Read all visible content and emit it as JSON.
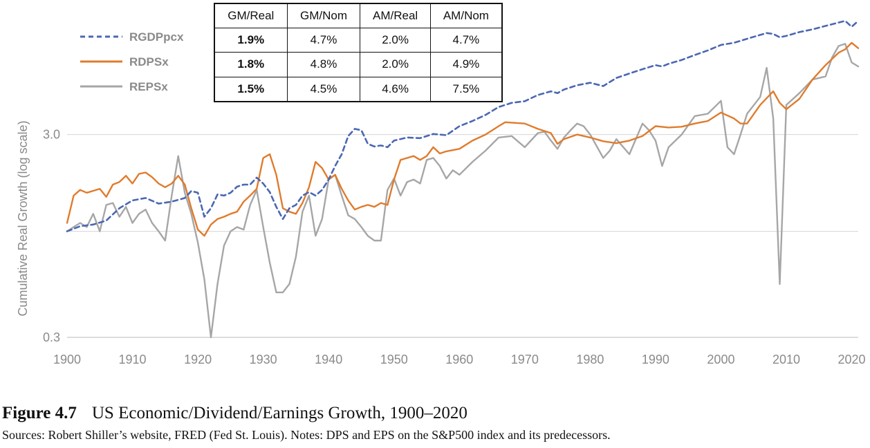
{
  "chart_data": {
    "type": "line",
    "ylabel": "Cumulative Real Growth (log scale)",
    "xlabel": "",
    "xlim": [
      1900,
      2021
    ],
    "ylim": [
      0.3,
      12
    ],
    "y_scale": "log",
    "y_ticks": [
      {
        "value": 3.0,
        "label": "3.0"
      },
      {
        "value": 1.0,
        "label": ""
      },
      {
        "value": 0.3,
        "label": "0.3"
      }
    ],
    "x_ticks": [
      1900,
      1910,
      1920,
      1930,
      1940,
      1950,
      1960,
      1970,
      1980,
      1990,
      2000,
      2010,
      2020
    ],
    "gridlines": "horizontal",
    "legend_position": "top-left",
    "series": [
      {
        "name": "RGDPpcx",
        "color": "#4a67b3",
        "style": "dashed",
        "points": [
          [
            1900,
            1.0
          ],
          [
            1902,
            1.06
          ],
          [
            1904,
            1.08
          ],
          [
            1906,
            1.13
          ],
          [
            1908,
            1.3
          ],
          [
            1910,
            1.42
          ],
          [
            1912,
            1.46
          ],
          [
            1914,
            1.37
          ],
          [
            1916,
            1.4
          ],
          [
            1918,
            1.46
          ],
          [
            1919,
            1.58
          ],
          [
            1920,
            1.55
          ],
          [
            1921,
            1.18
          ],
          [
            1922,
            1.3
          ],
          [
            1923,
            1.52
          ],
          [
            1924,
            1.5
          ],
          [
            1925,
            1.55
          ],
          [
            1926,
            1.66
          ],
          [
            1927,
            1.7
          ],
          [
            1928,
            1.7
          ],
          [
            1929,
            1.84
          ],
          [
            1930,
            1.72
          ],
          [
            1931,
            1.56
          ],
          [
            1932,
            1.32
          ],
          [
            1933,
            1.15
          ],
          [
            1934,
            1.3
          ],
          [
            1935,
            1.35
          ],
          [
            1936,
            1.5
          ],
          [
            1937,
            1.56
          ],
          [
            1938,
            1.5
          ],
          [
            1939,
            1.6
          ],
          [
            1940,
            1.8
          ],
          [
            1941,
            2.1
          ],
          [
            1942,
            2.4
          ],
          [
            1943,
            2.95
          ],
          [
            1944,
            3.2
          ],
          [
            1945,
            3.15
          ],
          [
            1946,
            2.7
          ],
          [
            1947,
            2.62
          ],
          [
            1948,
            2.65
          ],
          [
            1949,
            2.6
          ],
          [
            1950,
            2.8
          ],
          [
            1952,
            2.9
          ],
          [
            1954,
            2.88
          ],
          [
            1956,
            3.02
          ],
          [
            1958,
            2.98
          ],
          [
            1960,
            3.3
          ],
          [
            1962,
            3.5
          ],
          [
            1964,
            3.75
          ],
          [
            1966,
            4.1
          ],
          [
            1968,
            4.3
          ],
          [
            1970,
            4.38
          ],
          [
            1972,
            4.7
          ],
          [
            1974,
            4.9
          ],
          [
            1975,
            4.8
          ],
          [
            1976,
            5.0
          ],
          [
            1978,
            5.25
          ],
          [
            1980,
            5.4
          ],
          [
            1982,
            5.2
          ],
          [
            1984,
            5.7
          ],
          [
            1986,
            6.0
          ],
          [
            1988,
            6.3
          ],
          [
            1990,
            6.6
          ],
          [
            1991,
            6.5
          ],
          [
            1992,
            6.7
          ],
          [
            1994,
            7.0
          ],
          [
            1996,
            7.4
          ],
          [
            1998,
            7.8
          ],
          [
            2000,
            8.3
          ],
          [
            2002,
            8.5
          ],
          [
            2004,
            8.9
          ],
          [
            2006,
            9.3
          ],
          [
            2007,
            9.5
          ],
          [
            2008,
            9.4
          ],
          [
            2009,
            9.05
          ],
          [
            2010,
            9.2
          ],
          [
            2012,
            9.6
          ],
          [
            2014,
            9.9
          ],
          [
            2016,
            10.3
          ],
          [
            2018,
            10.7
          ],
          [
            2019,
            10.9
          ],
          [
            2020,
            10.2
          ],
          [
            2021,
            10.9
          ]
        ]
      },
      {
        "name": "RDPSx",
        "color": "#e07b2c",
        "style": "solid",
        "points": [
          [
            1900,
            1.1
          ],
          [
            1901,
            1.5
          ],
          [
            1902,
            1.6
          ],
          [
            1903,
            1.55
          ],
          [
            1905,
            1.62
          ],
          [
            1906,
            1.48
          ],
          [
            1907,
            1.7
          ],
          [
            1908,
            1.75
          ],
          [
            1909,
            1.88
          ],
          [
            1910,
            1.72
          ],
          [
            1911,
            1.92
          ],
          [
            1912,
            1.95
          ],
          [
            1913,
            1.85
          ],
          [
            1914,
            1.72
          ],
          [
            1915,
            1.65
          ],
          [
            1916,
            1.72
          ],
          [
            1917,
            1.88
          ],
          [
            1918,
            1.7
          ],
          [
            1919,
            1.3
          ],
          [
            1920,
            1.02
          ],
          [
            1921,
            0.95
          ],
          [
            1922,
            1.08
          ],
          [
            1923,
            1.15
          ],
          [
            1924,
            1.18
          ],
          [
            1925,
            1.22
          ],
          [
            1926,
            1.25
          ],
          [
            1927,
            1.4
          ],
          [
            1928,
            1.5
          ],
          [
            1929,
            1.62
          ],
          [
            1930,
            2.3
          ],
          [
            1931,
            2.4
          ],
          [
            1932,
            1.9
          ],
          [
            1933,
            1.3
          ],
          [
            1934,
            1.25
          ],
          [
            1935,
            1.22
          ],
          [
            1936,
            1.38
          ],
          [
            1937,
            1.65
          ],
          [
            1938,
            2.2
          ],
          [
            1939,
            2.05
          ],
          [
            1940,
            1.8
          ],
          [
            1941,
            1.9
          ],
          [
            1942,
            1.62
          ],
          [
            1943,
            1.42
          ],
          [
            1944,
            1.28
          ],
          [
            1945,
            1.32
          ],
          [
            1946,
            1.35
          ],
          [
            1947,
            1.32
          ],
          [
            1948,
            1.38
          ],
          [
            1949,
            1.35
          ],
          [
            1950,
            1.8
          ],
          [
            1951,
            2.25
          ],
          [
            1952,
            2.3
          ],
          [
            1953,
            2.35
          ],
          [
            1954,
            2.25
          ],
          [
            1955,
            2.35
          ],
          [
            1956,
            2.6
          ],
          [
            1957,
            2.42
          ],
          [
            1958,
            2.48
          ],
          [
            1960,
            2.55
          ],
          [
            1962,
            2.8
          ],
          [
            1964,
            3.0
          ],
          [
            1966,
            3.3
          ],
          [
            1967,
            3.45
          ],
          [
            1970,
            3.4
          ],
          [
            1972,
            3.2
          ],
          [
            1974,
            3.05
          ],
          [
            1975,
            2.7
          ],
          [
            1976,
            2.85
          ],
          [
            1978,
            3.0
          ],
          [
            1980,
            2.9
          ],
          [
            1982,
            2.78
          ],
          [
            1984,
            2.72
          ],
          [
            1986,
            2.8
          ],
          [
            1988,
            2.95
          ],
          [
            1990,
            3.3
          ],
          [
            1992,
            3.25
          ],
          [
            1994,
            3.28
          ],
          [
            1996,
            3.4
          ],
          [
            1998,
            3.5
          ],
          [
            2000,
            3.85
          ],
          [
            2002,
            3.6
          ],
          [
            2003,
            3.4
          ],
          [
            2004,
            3.4
          ],
          [
            2006,
            4.2
          ],
          [
            2008,
            4.9
          ],
          [
            2009,
            4.3
          ],
          [
            2010,
            4.0
          ],
          [
            2012,
            4.5
          ],
          [
            2014,
            5.6
          ],
          [
            2016,
            6.6
          ],
          [
            2018,
            7.6
          ],
          [
            2019,
            7.9
          ],
          [
            2020,
            8.5
          ],
          [
            2021,
            8.0
          ]
        ]
      },
      {
        "name": "REPSx",
        "color": "#a6a6a6",
        "style": "solid",
        "points": [
          [
            1900,
            1.0
          ],
          [
            1901,
            1.05
          ],
          [
            1902,
            1.1
          ],
          [
            1903,
            1.05
          ],
          [
            1904,
            1.22
          ],
          [
            1905,
            1.0
          ],
          [
            1906,
            1.35
          ],
          [
            1907,
            1.38
          ],
          [
            1908,
            1.18
          ],
          [
            1909,
            1.32
          ],
          [
            1910,
            1.1
          ],
          [
            1911,
            1.22
          ],
          [
            1912,
            1.28
          ],
          [
            1913,
            1.1
          ],
          [
            1914,
            1.0
          ],
          [
            1915,
            0.9
          ],
          [
            1916,
            1.5
          ],
          [
            1917,
            2.35
          ],
          [
            1918,
            1.55
          ],
          [
            1919,
            1.22
          ],
          [
            1920,
            0.88
          ],
          [
            1921,
            0.58
          ],
          [
            1922,
            0.3
          ],
          [
            1923,
            0.55
          ],
          [
            1924,
            0.85
          ],
          [
            1925,
            1.0
          ],
          [
            1926,
            1.05
          ],
          [
            1927,
            1.02
          ],
          [
            1928,
            1.35
          ],
          [
            1929,
            1.6
          ],
          [
            1930,
            1.05
          ],
          [
            1931,
            0.7
          ],
          [
            1932,
            0.5
          ],
          [
            1933,
            0.5
          ],
          [
            1934,
            0.55
          ],
          [
            1935,
            0.75
          ],
          [
            1936,
            1.25
          ],
          [
            1937,
            1.5
          ],
          [
            1938,
            0.95
          ],
          [
            1939,
            1.15
          ],
          [
            1940,
            1.8
          ],
          [
            1941,
            1.9
          ],
          [
            1942,
            1.5
          ],
          [
            1943,
            1.2
          ],
          [
            1944,
            1.15
          ],
          [
            1945,
            1.05
          ],
          [
            1946,
            0.95
          ],
          [
            1947,
            0.9
          ],
          [
            1948,
            0.9
          ],
          [
            1949,
            1.6
          ],
          [
            1950,
            1.82
          ],
          [
            1951,
            1.5
          ],
          [
            1952,
            1.75
          ],
          [
            1953,
            1.8
          ],
          [
            1954,
            1.72
          ],
          [
            1955,
            2.25
          ],
          [
            1956,
            2.3
          ],
          [
            1957,
            2.1
          ],
          [
            1958,
            1.82
          ],
          [
            1959,
            2.0
          ],
          [
            1960,
            1.9
          ],
          [
            1962,
            2.2
          ],
          [
            1964,
            2.5
          ],
          [
            1966,
            2.9
          ],
          [
            1968,
            2.95
          ],
          [
            1970,
            2.6
          ],
          [
            1972,
            3.05
          ],
          [
            1973,
            3.1
          ],
          [
            1974,
            2.8
          ],
          [
            1975,
            2.55
          ],
          [
            1976,
            2.9
          ],
          [
            1977,
            3.15
          ],
          [
            1978,
            3.4
          ],
          [
            1979,
            3.3
          ],
          [
            1980,
            3.0
          ],
          [
            1982,
            2.3
          ],
          [
            1983,
            2.5
          ],
          [
            1984,
            2.85
          ],
          [
            1986,
            2.4
          ],
          [
            1988,
            3.4
          ],
          [
            1989,
            3.15
          ],
          [
            1990,
            2.8
          ],
          [
            1991,
            2.1
          ],
          [
            1992,
            2.6
          ],
          [
            1994,
            3.0
          ],
          [
            1996,
            3.7
          ],
          [
            1998,
            3.8
          ],
          [
            2000,
            4.4
          ],
          [
            2001,
            2.6
          ],
          [
            2002,
            2.4
          ],
          [
            2003,
            3.0
          ],
          [
            2004,
            3.8
          ],
          [
            2006,
            4.6
          ],
          [
            2007,
            6.4
          ],
          [
            2008,
            3.6
          ],
          [
            2009,
            0.55
          ],
          [
            2010,
            4.2
          ],
          [
            2012,
            4.8
          ],
          [
            2014,
            5.6
          ],
          [
            2016,
            5.8
          ],
          [
            2017,
            7.2
          ],
          [
            2018,
            8.2
          ],
          [
            2019,
            8.4
          ],
          [
            2020,
            6.8
          ],
          [
            2021,
            6.5
          ]
        ]
      }
    ]
  },
  "table": {
    "headers": [
      "GM/Real",
      "GM/Nom",
      "AM/Real",
      "AM/Nom"
    ],
    "rows": [
      [
        "1.9%",
        "4.7%",
        "2.0%",
        "4.7%"
      ],
      [
        "1.8%",
        "4.8%",
        "2.0%",
        "4.9%"
      ],
      [
        "1.5%",
        "4.5%",
        "4.6%",
        "7.5%"
      ]
    ]
  },
  "caption": {
    "figure_number": "Figure 4.7",
    "title": "US Economic/Dividend/Earnings Growth, 1900–2020",
    "sources": "Sources: Robert Shiller’s website, FRED (Fed St. Louis). Notes: DPS and EPS on the S&P500 index and its predecessors."
  }
}
